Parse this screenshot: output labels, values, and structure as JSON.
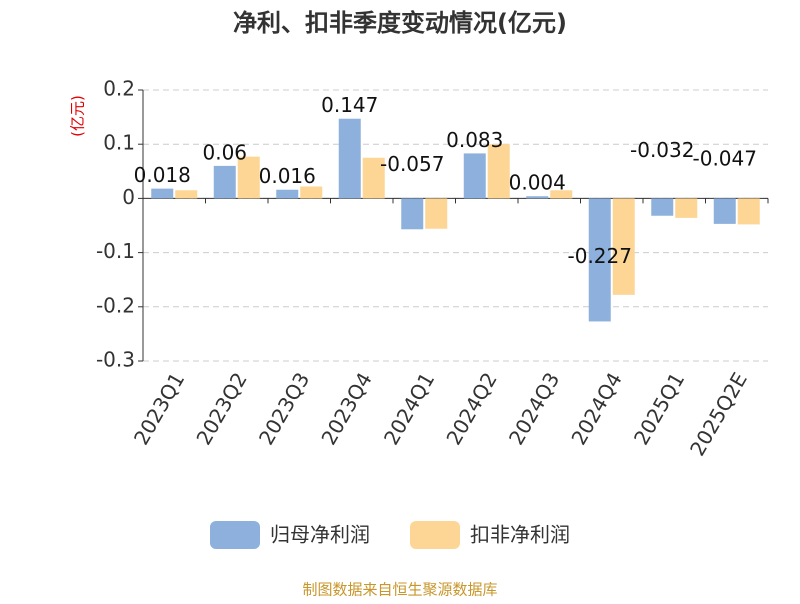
{
  "chart_data": {
    "type": "bar",
    "title": "净利、扣非季度变动情况(亿元)",
    "y_label": "(亿元)",
    "source": "制图数据来自恒生聚源数据库",
    "categories": [
      "2023Q1",
      "2023Q2",
      "2023Q3",
      "2023Q4",
      "2024Q1",
      "2024Q2",
      "2024Q3",
      "2024Q4",
      "2025Q1",
      "2025Q2E"
    ],
    "series": [
      {
        "name": "归母净利润",
        "color": "#8eb0dc",
        "values": [
          0.018,
          0.06,
          0.016,
          0.147,
          -0.057,
          0.083,
          0.004,
          -0.227,
          -0.032,
          -0.047
        ]
      },
      {
        "name": "扣非净利润",
        "color": "#fdd696",
        "values": [
          0.015,
          0.077,
          0.022,
          0.075,
          -0.056,
          0.1,
          0.015,
          -0.178,
          -0.036,
          -0.048
        ]
      }
    ],
    "ylim": [
      -0.3,
      0.2
    ],
    "yticks": [
      0.2,
      0.1,
      0,
      -0.1,
      -0.2,
      -0.3
    ],
    "grid": true
  }
}
